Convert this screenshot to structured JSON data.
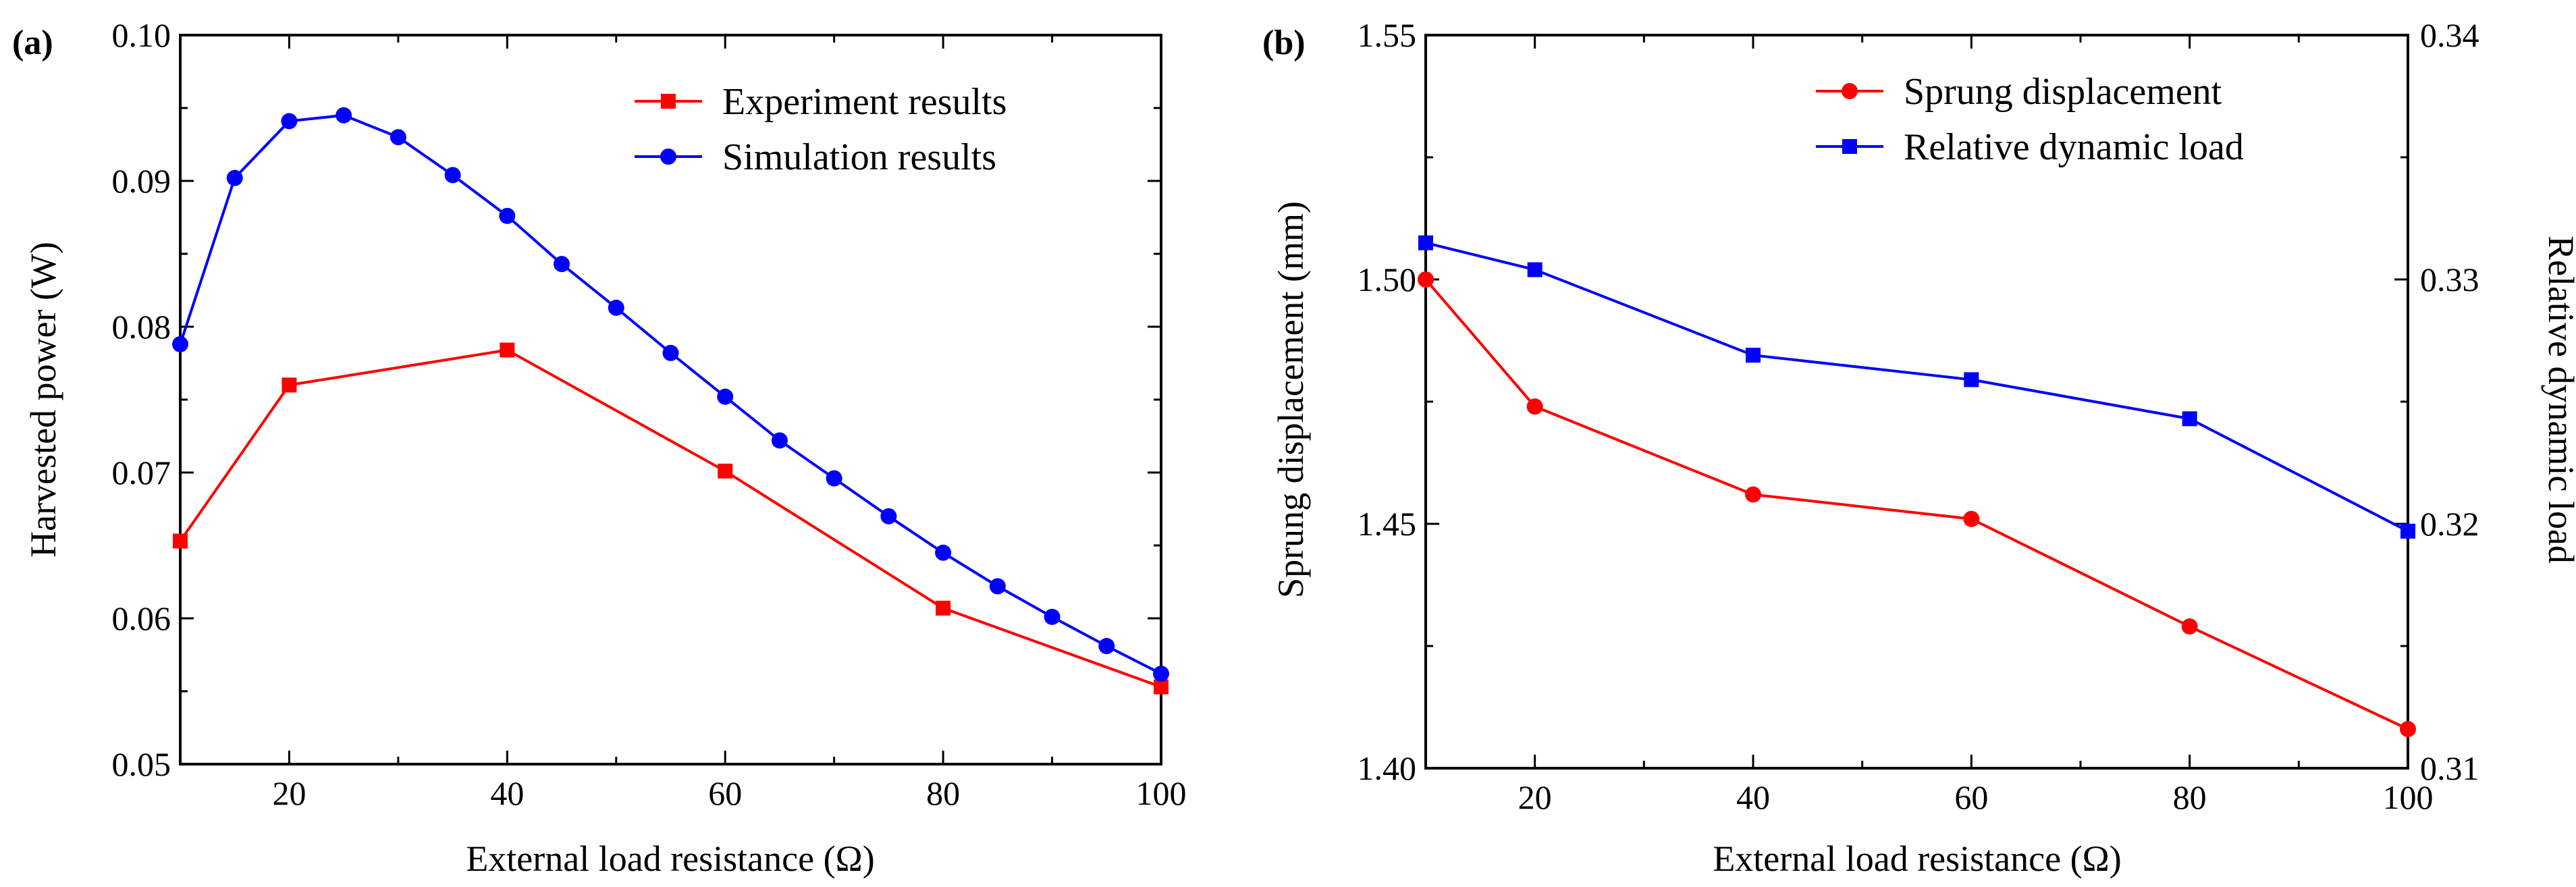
{
  "chart_data": [
    {
      "type": "line",
      "panel_label": "(a)",
      "xlabel": "External load resistance (Ω)",
      "ylabel": "Harvested power (W)",
      "xlim": [
        10,
        100
      ],
      "ylim": [
        0.05,
        0.1
      ],
      "xticks": [
        20,
        40,
        60,
        80,
        100
      ],
      "xtick_labels": [
        "20",
        "40",
        "60",
        "80",
        "100"
      ],
      "yticks": [
        0.05,
        0.06,
        0.07,
        0.08,
        0.09,
        0.1
      ],
      "ytick_labels": [
        "0.05",
        "0.06",
        "0.07",
        "0.08",
        "0.09",
        "0.10"
      ],
      "legend_position": "top-right",
      "series": [
        {
          "name": "Experiment results",
          "color": "#ff0000",
          "marker": "square",
          "axis": "left",
          "x": [
            10,
            20,
            40,
            60,
            80,
            100
          ],
          "values": [
            0.0653,
            0.076,
            0.0784,
            0.0701,
            0.0607,
            0.0553
          ]
        },
        {
          "name": "Simulation results",
          "color": "#0000ff",
          "marker": "circle",
          "axis": "left",
          "x": [
            10,
            15,
            20,
            25,
            30,
            35,
            40,
            45,
            50,
            55,
            60,
            65,
            70,
            75,
            80,
            85,
            90,
            95,
            100
          ],
          "values": [
            0.0788,
            0.0902,
            0.0941,
            0.0945,
            0.093,
            0.0904,
            0.0876,
            0.0843,
            0.0813,
            0.0782,
            0.0752,
            0.0722,
            0.0696,
            0.067,
            0.0645,
            0.0622,
            0.0601,
            0.0581,
            0.0562
          ]
        }
      ]
    },
    {
      "type": "line",
      "panel_label": "(b)",
      "xlabel": "External load resistance (Ω)",
      "ylabel": "Sprung displacement (mm)",
      "ylabel_right": "Relative dynamic load",
      "xlim": [
        10,
        100
      ],
      "ylim": [
        1.4,
        1.55
      ],
      "ylim_right": [
        0.31,
        0.34
      ],
      "xticks": [
        20,
        40,
        60,
        80,
        100
      ],
      "xtick_labels": [
        "20",
        "40",
        "60",
        "80",
        "100"
      ],
      "yticks": [
        1.4,
        1.45,
        1.5,
        1.55
      ],
      "ytick_labels": [
        "1.40",
        "1.45",
        "1.50",
        "1.55"
      ],
      "yticks_right": [
        0.31,
        0.32,
        0.33,
        0.34
      ],
      "ytick_labels_right": [
        "0.31",
        "0.32",
        "0.33",
        "0.34"
      ],
      "legend_position": "top-right",
      "series": [
        {
          "name": "Sprung displacement",
          "color": "#ff0000",
          "marker": "circle",
          "axis": "left",
          "x": [
            10,
            20,
            40,
            60,
            80,
            100
          ],
          "values": [
            1.5,
            1.474,
            1.456,
            1.451,
            1.429,
            1.408
          ]
        },
        {
          "name": "Relative dynamic load",
          "color": "#0000ff",
          "marker": "square",
          "axis": "right",
          "x": [
            10,
            20,
            40,
            60,
            80,
            100
          ],
          "values": [
            0.3315,
            0.3304,
            0.3269,
            0.3259,
            0.3243,
            0.3197
          ]
        }
      ]
    }
  ]
}
